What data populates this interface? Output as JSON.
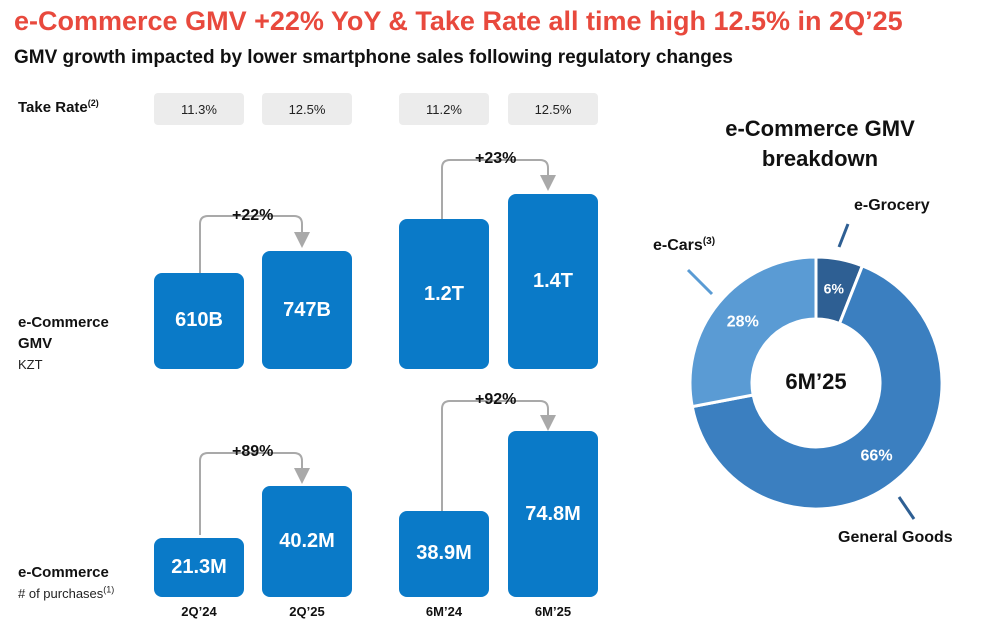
{
  "header": {
    "title": "e-Commerce GMV +22% YoY & Take Rate all time high 12.5% in 2Q’25",
    "subtitle": "GMV growth impacted by lower smartphone sales following regulatory changes"
  },
  "rows": {
    "take_rate_label": "Take Rate",
    "take_rate_note": "(2)",
    "gmv_label_1": "e-Commerce",
    "gmv_label_2": "GMV",
    "gmv_unit": "KZT",
    "purchases_label_1": "e-Commerce",
    "purchases_label_2": "# of purchases",
    "purchases_note": "(1)"
  },
  "colors": {
    "title": "#e8493d",
    "bar": "#0a7ac8",
    "pill": "#ececec",
    "general_goods": "#3b7fc0",
    "e_cars": "#5a9bd4",
    "e_grocery": "#2e5f93"
  },
  "chart_data": [
    {
      "type": "table",
      "title": "Take Rate",
      "categories": [
        "2Q’24",
        "2Q’25",
        "6M’24",
        "6M’25"
      ],
      "values": [
        11.3,
        12.5,
        11.2,
        12.5
      ],
      "labels": [
        "11.3%",
        "12.5%",
        "11.2%",
        "12.5%"
      ]
    },
    {
      "type": "bar",
      "title": "e-Commerce GMV (KZT)",
      "categories": [
        "2Q’24",
        "2Q’25",
        "6M’24",
        "6M’25"
      ],
      "values_kzt_b": [
        610,
        747,
        1200,
        1400
      ],
      "labels": [
        "610B",
        "747B",
        "1.2T",
        "1.4T"
      ],
      "growth": [
        {
          "from": "2Q’24",
          "to": "2Q’25",
          "label": "+22%"
        },
        {
          "from": "6M’24",
          "to": "6M’25",
          "label": "+23%"
        }
      ]
    },
    {
      "type": "bar",
      "title": "e-Commerce # of purchases",
      "categories": [
        "2Q’24",
        "2Q’25",
        "6M’24",
        "6M’25"
      ],
      "values_m": [
        21.3,
        40.2,
        38.9,
        74.8
      ],
      "labels": [
        "21.3M",
        "40.2M",
        "38.9M",
        "74.8M"
      ],
      "growth": [
        {
          "from": "2Q’24",
          "to": "2Q’25",
          "label": "+89%"
        },
        {
          "from": "6M’24",
          "to": "6M’25",
          "label": "+92%"
        }
      ]
    },
    {
      "type": "pie",
      "title_line1": "e-Commerce GMV",
      "title_line2": "breakdown",
      "center_label": "6M’25",
      "slices": [
        {
          "name": "e-Grocery",
          "value": 6,
          "label": "6%",
          "color": "#2e5f93"
        },
        {
          "name": "General Goods",
          "value": 66,
          "label": "66%",
          "color": "#3b7fc0"
        },
        {
          "name": "e-Cars",
          "value": 28,
          "label": "28%",
          "color": "#5a9bd4",
          "note": "(3)"
        }
      ]
    }
  ]
}
